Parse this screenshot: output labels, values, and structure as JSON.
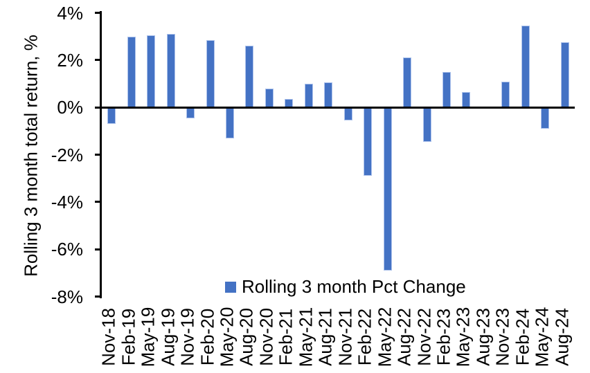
{
  "chart_data": {
    "type": "bar",
    "title": "",
    "ylabel": "Rolling 3 month total return, %",
    "xlabel": "",
    "legend_label": "Rolling 3 month Pct Change",
    "legend_position": "inside-bottom",
    "grid": false,
    "ylim": [
      -8,
      4
    ],
    "ytick_step": 2,
    "ytick_suffix": "%",
    "bar_color": "#4472C4",
    "axis_color": "#000000",
    "background_color": "#FFFFFF",
    "categories": [
      "Nov-18",
      "Feb-19",
      "May-19",
      "Aug-19",
      "Nov-19",
      "Feb-20",
      "May-20",
      "Aug-20",
      "Nov-20",
      "Feb-21",
      "May-21",
      "Aug-21",
      "Nov-21",
      "Feb-22",
      "May-22",
      "Aug-22",
      "Nov-22",
      "Feb-23",
      "May-23",
      "Aug-23",
      "Nov-23",
      "Feb-24",
      "May-24",
      "Aug-24"
    ],
    "values": [
      -0.7,
      3.0,
      3.05,
      3.1,
      -0.45,
      2.85,
      -1.3,
      2.6,
      0.8,
      0.35,
      1.0,
      1.05,
      -0.55,
      -2.9,
      -6.9,
      2.1,
      -1.45,
      1.5,
      0.65,
      0.0,
      1.1,
      3.45,
      -0.9,
      2.75
    ]
  }
}
